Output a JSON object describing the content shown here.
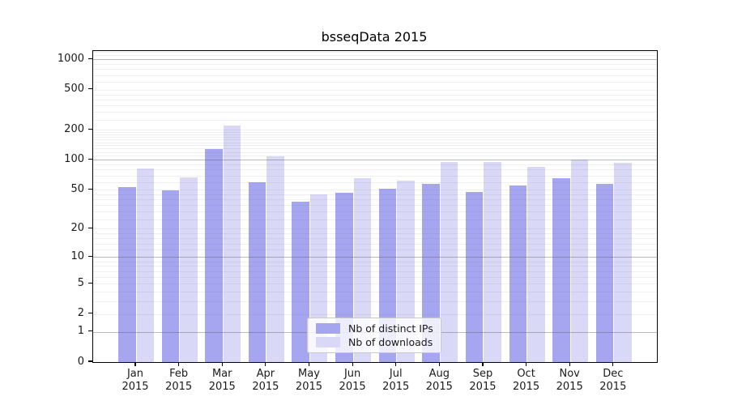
{
  "title": "bsseqData 2015",
  "chart_data": {
    "type": "bar",
    "title": "bsseqData 2015",
    "categories": [
      "Jan 2015",
      "Feb 2015",
      "Mar 2015",
      "Apr 2015",
      "May 2015",
      "Jun 2015",
      "Jul 2015",
      "Aug 2015",
      "Sep 2015",
      "Oct 2015",
      "Nov 2015",
      "Dec 2015"
    ],
    "series": [
      {
        "name": "Nb of distinct IPs",
        "color": "#a5a5f0",
        "values": [
          53,
          49,
          128,
          60,
          38,
          47,
          51,
          57,
          48,
          55,
          66,
          57
        ]
      },
      {
        "name": "Nb of downloads",
        "color": "#d9d9f7",
        "values": [
          82,
          67,
          220,
          108,
          45,
          66,
          62,
          95,
          95,
          85,
          101,
          93
        ]
      }
    ],
    "xlabel": "",
    "ylabel": "",
    "yscale": "log10(1+y)",
    "ylim": [
      0,
      1213
    ],
    "yticks": [
      0,
      1,
      2,
      5,
      10,
      20,
      50,
      100,
      200,
      500,
      1000
    ],
    "major_gridlines": [
      1,
      10,
      100,
      1000
    ],
    "minor_gridlines": [
      3,
      4,
      6,
      7,
      8,
      9,
      12,
      14,
      16,
      18,
      25,
      30,
      35,
      40,
      45,
      60,
      70,
      80,
      90,
      110,
      120,
      130,
      140,
      150,
      160,
      170,
      180,
      190,
      250,
      300,
      350,
      400,
      450,
      600,
      700,
      800,
      900,
      1100,
      1200
    ],
    "grid": "on",
    "grid_above_bars": true,
    "legend_position": "lower center",
    "axis_color": "#000000",
    "background_color": "#ffffff"
  }
}
